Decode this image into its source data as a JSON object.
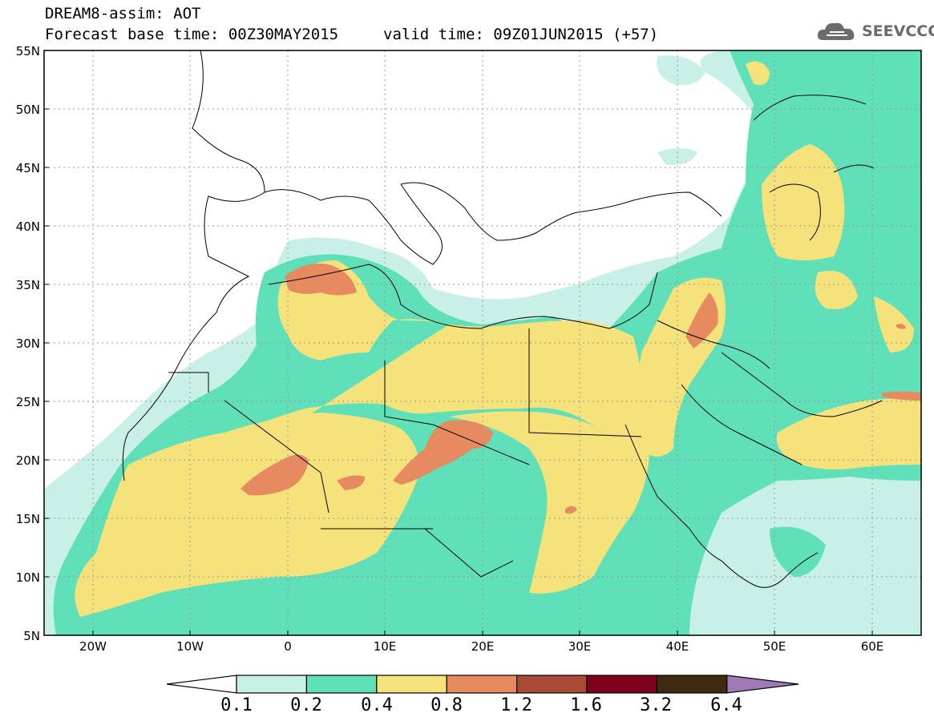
{
  "header": {
    "title": "DREAM8-assim: AOT",
    "base_time": "Forecast base time: 00Z30MAY2015",
    "valid_time": "valid time: 09Z01JUN2015 (+57)"
  },
  "logo": {
    "text": "SEEVCCC",
    "icon": "cloud-icon"
  },
  "map": {
    "lat_labels": [
      "55N",
      "50N",
      "45N",
      "40N",
      "35N",
      "30N",
      "25N",
      "20N",
      "15N",
      "10N",
      "5N"
    ],
    "lon_labels": [
      "20W",
      "10W",
      "0",
      "10E",
      "20E",
      "30E",
      "40E",
      "50E",
      "60E"
    ],
    "lon_range": [
      -25,
      65
    ],
    "lat_range": [
      5,
      55
    ],
    "gridlines": true
  },
  "colorbar": {
    "labels": [
      "0.1",
      "0.2",
      "0.4",
      "0.8",
      "1.2",
      "1.6",
      "3.2",
      "6.4"
    ],
    "colors": [
      "#c8f0e8",
      "#5fe0b8",
      "#f5e27a",
      "#e88a60",
      "#a84a35",
      "#800020",
      "#3d2a10",
      "#a07ab8"
    ],
    "under_color": "#ffffff"
  }
}
